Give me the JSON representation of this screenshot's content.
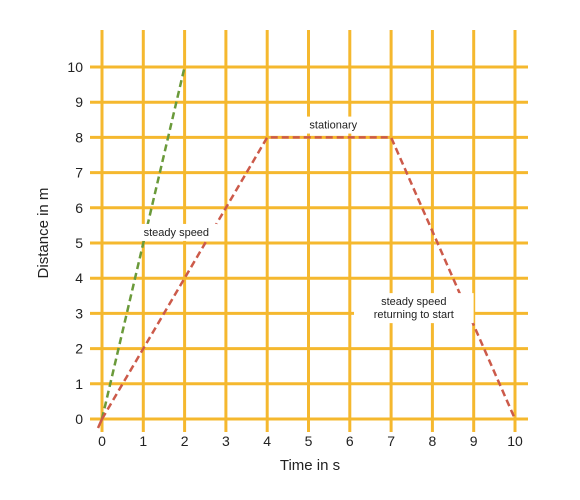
{
  "chart_data": {
    "type": "line",
    "xlabel": "Time in s",
    "ylabel": "Distance in m",
    "xlim": [
      0,
      10
    ],
    "ylim": [
      0,
      10
    ],
    "x_ticks": [
      "0",
      "1",
      "2",
      "3",
      "4",
      "5",
      "6",
      "7",
      "8",
      "9",
      "10"
    ],
    "y_ticks": [
      "0",
      "1",
      "2",
      "3",
      "4",
      "5",
      "6",
      "7",
      "8",
      "9",
      "10"
    ],
    "grid": true,
    "grid_color": "#f5b82e",
    "series": [
      {
        "color": "#6a9a3a",
        "style": "dashed",
        "points": [
          [
            0,
            0
          ],
          [
            2,
            10
          ]
        ]
      },
      {
        "color": "#cc5a4a",
        "style": "dashed",
        "points": [
          [
            0,
            0
          ],
          [
            4,
            8
          ],
          [
            7,
            8
          ],
          [
            10,
            0
          ]
        ]
      }
    ],
    "annotations": [
      {
        "lines": [
          "steady speed"
        ],
        "x": 1.8,
        "y": 5.3
      },
      {
        "lines": [
          "stationary"
        ],
        "x": 5.6,
        "y": 8.35
      },
      {
        "lines": [
          "steady speed",
          "returning to start"
        ],
        "x": 7.55,
        "y": 3.15
      }
    ]
  }
}
